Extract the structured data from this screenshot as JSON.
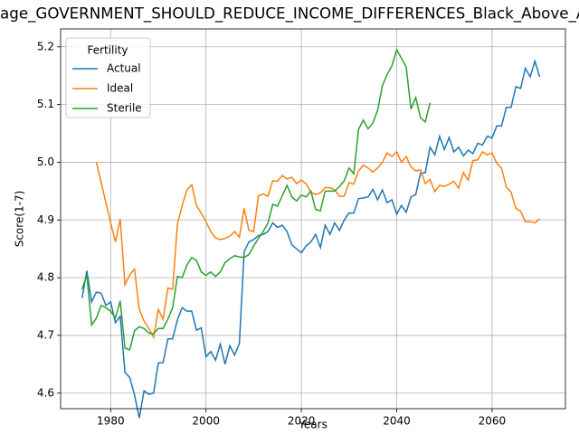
{
  "chart_data": {
    "type": "line",
    "title": "age_GOVERNMENT_SHOULD_REDUCE_INCOME_DIFFERENCES_Black_Above_A",
    "x_label": "Years",
    "y_label": "Score(1-7)",
    "legend_title": "Fertility",
    "legend_loc": "upper-left",
    "grid": true,
    "xlim": [
      1969.5,
      2075.4
    ],
    "xticks": [
      1980,
      2000,
      2020,
      2040,
      2060
    ],
    "ylim": [
      4.573,
      5.231
    ],
    "yticks": [
      4.6,
      4.7,
      4.8,
      4.9,
      {
        "value": 5,
        "label": "5.0"
      },
      5.1,
      5.2
    ],
    "x": [
      1974,
      1975,
      1976,
      1977,
      1978,
      1979,
      1980,
      1981,
      1982,
      1983,
      1984,
      1985,
      1986,
      1987,
      1988,
      1989,
      1990,
      1991,
      1992,
      1993,
      1994,
      1995,
      1996,
      1997,
      1998,
      1999,
      2000,
      2001,
      2002,
      2003,
      2004,
      2005,
      2006,
      2007,
      2008,
      2009,
      2010,
      2011,
      2012,
      2013,
      2014,
      2015,
      2016,
      2017,
      2018,
      2019,
      2020,
      2021,
      2022,
      2023,
      2024,
      2025,
      2026,
      2027,
      2028,
      2029,
      2030,
      2031,
      2032,
      2033,
      2034,
      2035,
      2036,
      2037,
      2038,
      2039,
      2040,
      2041,
      2042,
      2043,
      2044,
      2045,
      2046,
      2047,
      2048,
      2049,
      2050,
      2051,
      2052,
      2053,
      2054,
      2055,
      2056,
      2057,
      2058,
      2059,
      2060,
      2061,
      2062,
      2063,
      2064,
      2065,
      2066,
      2067,
      2068,
      2069,
      2070
    ],
    "series": [
      {
        "name": "Actual",
        "color": "#1f77b4",
        "values": [
          4.765,
          4.812,
          4.758,
          4.775,
          4.773,
          4.752,
          4.758,
          4.722,
          4.733,
          4.636,
          4.627,
          4.597,
          4.557,
          4.604,
          4.598,
          4.6,
          4.652,
          4.653,
          4.694,
          4.694,
          4.727,
          4.748,
          4.742,
          4.742,
          4.709,
          4.713,
          4.663,
          4.672,
          4.657,
          4.685,
          4.65,
          4.682,
          4.666,
          4.686,
          4.845,
          4.862,
          4.866,
          4.873,
          4.875,
          4.88,
          4.895,
          4.887,
          4.891,
          4.88,
          4.857,
          4.85,
          4.843,
          4.855,
          4.862,
          4.875,
          4.852,
          4.891,
          4.875,
          4.895,
          4.882,
          4.9,
          4.912,
          4.912,
          4.937,
          4.938,
          4.94,
          4.953,
          4.935,
          4.952,
          4.93,
          4.935,
          4.91,
          4.925,
          4.913,
          4.94,
          4.944,
          4.981,
          4.982,
          5.026,
          5.013,
          5.045,
          5.022,
          5.043,
          5.018,
          5.026,
          5.011,
          5.021,
          5.015,
          5.033,
          5.03,
          5.045,
          5.042,
          5.063,
          5.063,
          5.095,
          5.095,
          5.131,
          5.128,
          5.163,
          5.148,
          5.175,
          5.148
        ]
      },
      {
        "name": "Ideal",
        "color": "#ff7f0e",
        "values": [
          null,
          null,
          null,
          5.0,
          4.965,
          4.93,
          4.895,
          4.862,
          4.902,
          4.788,
          4.805,
          4.815,
          4.745,
          4.725,
          4.712,
          4.697,
          4.745,
          4.728,
          4.782,
          4.78,
          4.893,
          4.925,
          4.952,
          4.961,
          4.925,
          4.912,
          4.897,
          4.88,
          4.869,
          4.866,
          4.868,
          4.872,
          4.88,
          4.87,
          4.92,
          4.882,
          4.88,
          4.942,
          4.945,
          4.941,
          4.968,
          4.967,
          4.977,
          4.971,
          4.974,
          4.963,
          4.969,
          4.963,
          4.948,
          4.944,
          4.947,
          4.956,
          4.956,
          4.952,
          4.941,
          4.941,
          4.965,
          4.962,
          4.985,
          4.995,
          4.99,
          4.983,
          4.99,
          5.0,
          5.016,
          5.01,
          5.018,
          5.0,
          5.01,
          4.992,
          4.985,
          4.987,
          4.963,
          4.97,
          4.949,
          4.96,
          4.958,
          4.962,
          4.967,
          4.955,
          4.982,
          4.969,
          5.003,
          5.004,
          5.018,
          5.013,
          5.016,
          4.998,
          4.99,
          4.957,
          4.948,
          4.92,
          4.915,
          4.897,
          4.897,
          4.895,
          4.902
        ]
      },
      {
        "name": "Sterile",
        "color": "#2ca02c",
        "values": [
          4.78,
          4.805,
          4.718,
          4.73,
          4.752,
          4.748,
          4.742,
          4.73,
          4.76,
          4.678,
          4.675,
          4.708,
          4.715,
          4.712,
          4.704,
          4.703,
          4.712,
          4.712,
          4.728,
          4.748,
          4.802,
          4.8,
          4.822,
          4.835,
          4.83,
          4.81,
          4.804,
          4.81,
          4.802,
          4.81,
          4.826,
          4.833,
          4.838,
          4.836,
          4.835,
          4.84,
          4.855,
          4.868,
          4.88,
          4.895,
          4.927,
          4.924,
          4.942,
          4.96,
          4.94,
          4.933,
          4.943,
          4.94,
          4.95,
          4.918,
          4.916,
          4.95,
          4.95,
          4.95,
          4.958,
          4.968,
          4.99,
          4.98,
          5.057,
          5.073,
          5.058,
          5.068,
          5.09,
          5.133,
          5.152,
          5.167,
          5.195,
          5.18,
          5.165,
          5.092,
          5.112,
          5.077,
          5.07,
          5.103,
          null,
          null,
          null,
          null,
          null,
          null,
          null,
          null,
          null,
          null,
          null,
          null,
          null,
          null,
          null,
          null,
          null,
          null,
          null,
          null,
          null,
          null,
          null
        ]
      }
    ]
  }
}
